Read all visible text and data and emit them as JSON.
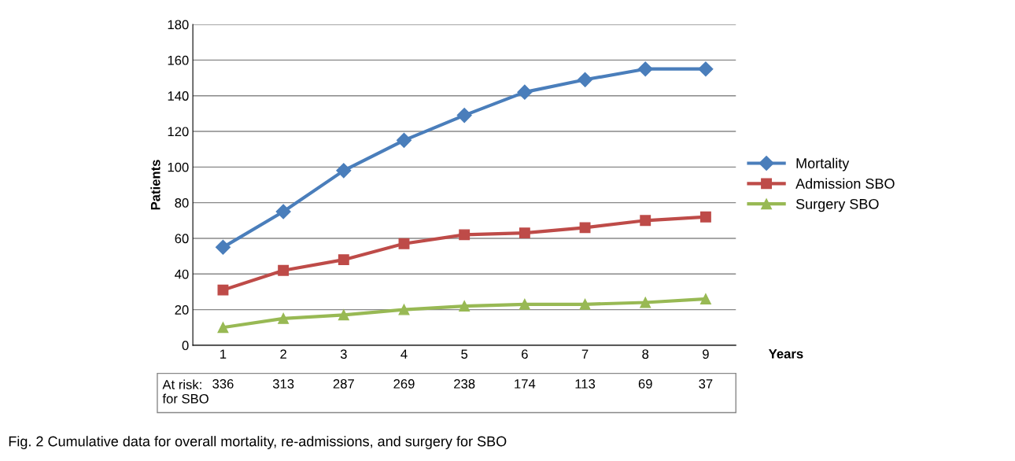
{
  "chart_data": {
    "type": "line",
    "title": "Fig. 2 Cumulative data for overall mortality, re-admissions, and surgery for SBO",
    "xlabel": "Years",
    "ylabel": "Patients",
    "categories": [
      "1",
      "2",
      "3",
      "4",
      "5",
      "6",
      "7",
      "8",
      "9"
    ],
    "series": [
      {
        "name": "Mortality",
        "color": "#4a7ebb",
        "marker": "diamond",
        "values": [
          55,
          75,
          98,
          115,
          129,
          142,
          149,
          155,
          155
        ]
      },
      {
        "name": "Admission SBO",
        "color": "#be4b48",
        "marker": "square",
        "values": [
          31,
          42,
          48,
          57,
          62,
          63,
          66,
          70,
          72
        ]
      },
      {
        "name": "Surgery SBO",
        "color": "#98b954",
        "marker": "triangle",
        "values": [
          10,
          15,
          17,
          20,
          22,
          23,
          23,
          24,
          26
        ]
      }
    ],
    "ylim": [
      0,
      180
    ],
    "yticks": [
      0,
      20,
      40,
      60,
      80,
      100,
      120,
      140,
      160,
      180
    ],
    "grid": "y",
    "legend": "right",
    "annotations": [
      "At risk:\nfor SBO",
      "336",
      "313",
      "287",
      "269",
      "238",
      "174",
      "113",
      "69",
      "37"
    ]
  }
}
